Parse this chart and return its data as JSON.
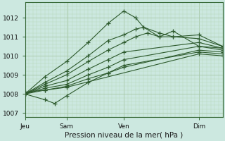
{
  "bg_color": "#cce8e0",
  "line_color": "#2d5a2d",
  "grid_color_major": "#a8c8a8",
  "grid_color_minor": "#b8d8b8",
  "ylim": [
    1006.8,
    1012.8
  ],
  "yticks": [
    1007,
    1008,
    1009,
    1010,
    1011,
    1012
  ],
  "xtick_labels": [
    "Jeu",
    "Sam",
    "Ven",
    "Dim"
  ],
  "xtick_positions": [
    0.0,
    0.21,
    0.5,
    0.88
  ],
  "xlabel": "Pression niveau de la mer( hPa )",
  "series": [
    {
      "x": [
        0.0,
        0.1,
        0.21,
        0.32,
        0.42,
        0.5,
        0.56,
        0.6,
        0.68,
        0.75,
        0.88,
        1.0
      ],
      "y": [
        1008.0,
        1008.9,
        1009.7,
        1010.7,
        1011.7,
        1012.35,
        1012.0,
        1011.5,
        1011.0,
        1011.3,
        1010.5,
        1010.4
      ]
    },
    {
      "x": [
        0.0,
        0.1,
        0.21,
        0.32,
        0.42,
        0.5,
        0.56,
        0.6,
        0.68,
        0.75,
        0.88,
        1.0
      ],
      "y": [
        1008.0,
        1008.6,
        1009.2,
        1010.0,
        1010.8,
        1011.1,
        1011.4,
        1011.5,
        1011.2,
        1011.0,
        1011.1,
        1010.5
      ]
    },
    {
      "x": [
        0.0,
        0.1,
        0.21,
        0.32,
        0.42,
        0.5,
        0.56,
        0.62,
        0.68,
        0.75,
        0.88,
        1.0
      ],
      "y": [
        1008.0,
        1008.5,
        1009.0,
        1009.7,
        1010.3,
        1010.7,
        1011.0,
        1011.2,
        1011.0,
        1011.0,
        1010.9,
        1010.5
      ]
    },
    {
      "x": [
        0.0,
        0.1,
        0.21,
        0.32,
        0.42,
        0.5,
        0.88,
        1.0
      ],
      "y": [
        1008.0,
        1008.4,
        1008.7,
        1009.3,
        1009.8,
        1010.2,
        1010.7,
        1010.4
      ]
    },
    {
      "x": [
        0.0,
        0.1,
        0.21,
        0.32,
        0.42,
        0.5,
        0.88,
        1.0
      ],
      "y": [
        1008.0,
        1008.3,
        1008.5,
        1009.0,
        1009.4,
        1009.8,
        1010.5,
        1010.3
      ]
    },
    {
      "x": [
        0.0,
        0.1,
        0.21,
        0.32,
        0.42,
        0.5,
        0.88,
        1.0
      ],
      "y": [
        1008.0,
        1008.2,
        1008.4,
        1008.8,
        1009.1,
        1009.4,
        1010.3,
        1010.2
      ]
    },
    {
      "x": [
        0.0,
        0.1,
        0.15,
        0.21,
        0.32,
        0.42,
        0.5,
        0.88,
        1.0
      ],
      "y": [
        1008.0,
        1007.7,
        1007.5,
        1007.9,
        1008.6,
        1009.1,
        1009.5,
        1010.2,
        1010.1
      ]
    },
    {
      "x": [
        0.0,
        0.1,
        0.21,
        0.88,
        1.0
      ],
      "y": [
        1008.1,
        1008.2,
        1008.35,
        1010.1,
        1010.0
      ]
    }
  ]
}
